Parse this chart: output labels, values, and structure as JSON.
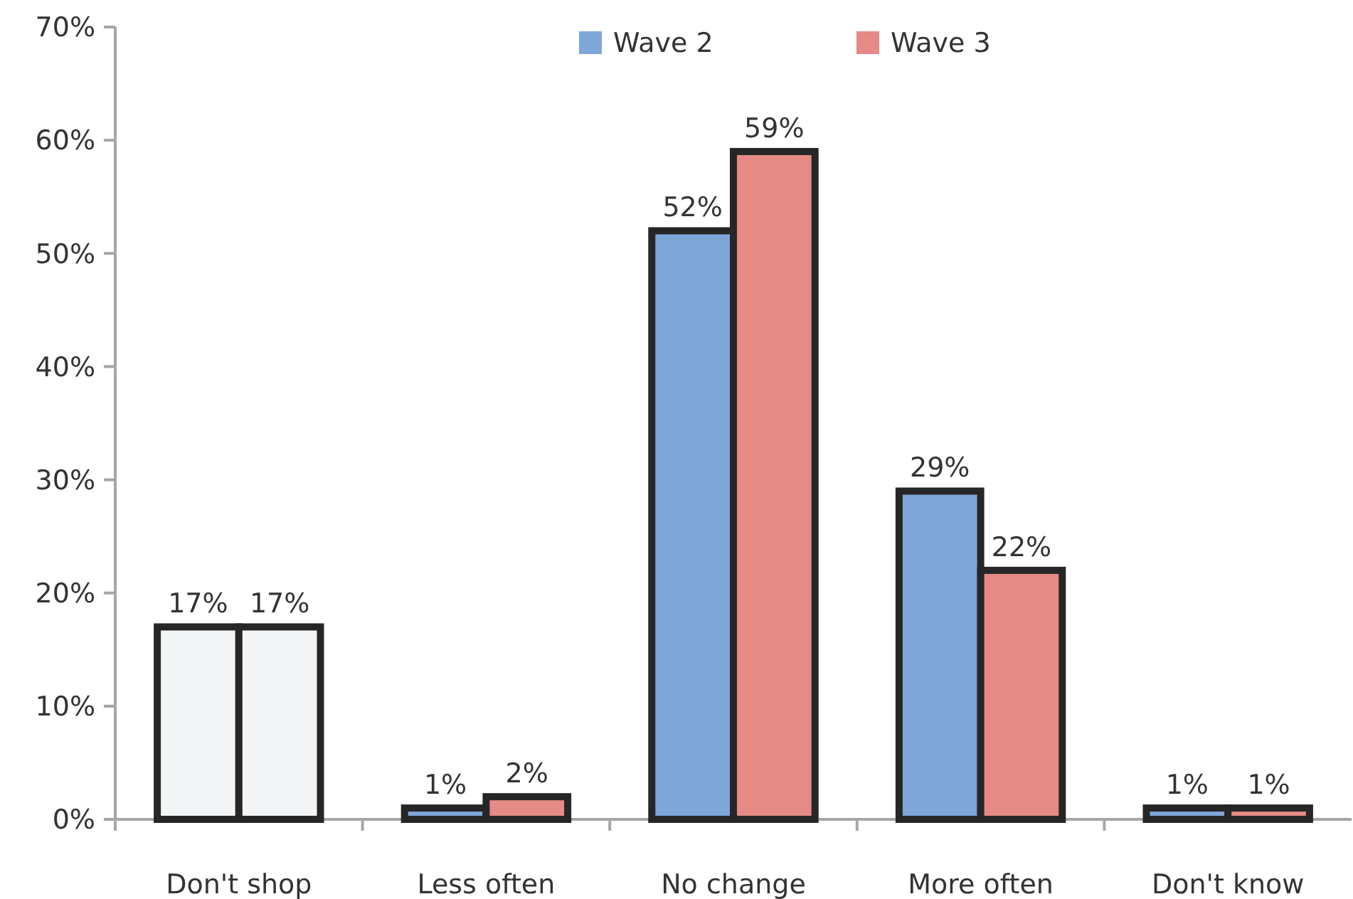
{
  "chart_data": {
    "type": "bar",
    "categories": [
      "Don't shop",
      "Less often",
      "No change",
      "More often",
      "Don't know"
    ],
    "series": [
      {
        "name": "Wave 2",
        "color": "#7fa6d9",
        "colors": [
          "#f3f4f6",
          "#7fa6d9",
          "#7fa6d9",
          "#7fa6d9",
          "#7fa6d9"
        ],
        "values": [
          17,
          1,
          52,
          29,
          1
        ],
        "value_labels": [
          "17%",
          "1%",
          "52%",
          "29%",
          "1%"
        ]
      },
      {
        "name": "Wave 3",
        "color": "#e58a85",
        "colors": [
          "#f3f4f6",
          "#e58a85",
          "#e58a85",
          "#e58a85",
          "#e58a85"
        ],
        "values": [
          17,
          2,
          59,
          22,
          1
        ],
        "value_labels": [
          "17%",
          "2%",
          "59%",
          "22%",
          "1%"
        ]
      }
    ],
    "ylim": [
      0,
      70
    ],
    "yticks": [
      {
        "value": 0,
        "label": "0%"
      },
      {
        "value": 10,
        "label": "10%"
      },
      {
        "value": 20,
        "label": "20%"
      },
      {
        "value": 30,
        "label": "30%"
      },
      {
        "value": 40,
        "label": "40%"
      },
      {
        "value": 50,
        "label": "50%"
      },
      {
        "value": 60,
        "label": "60%"
      },
      {
        "value": 70,
        "label": "70%"
      }
    ],
    "legend": "top",
    "grid": false
  }
}
